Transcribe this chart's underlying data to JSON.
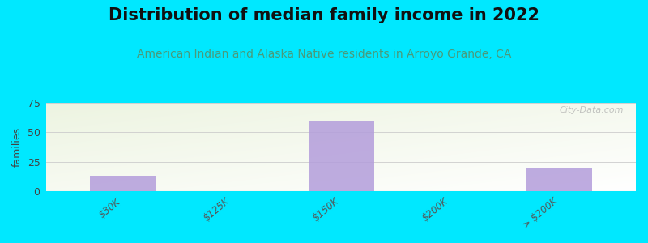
{
  "title": "Distribution of median family income in 2022",
  "subtitle": "American Indian and Alaska Native residents in Arroyo Grande, CA",
  "categories": [
    "$30K",
    "$125K",
    "$150K",
    "$200K",
    "> $200K"
  ],
  "values": [
    13,
    0,
    60,
    0,
    19
  ],
  "bar_color": "#b39ddb",
  "bar_alpha": 0.85,
  "ylim": [
    0,
    75
  ],
  "yticks": [
    0,
    25,
    50,
    75
  ],
  "ylabel": "families",
  "background_color": "#00e8ff",
  "grad_color_green": [
    0.929,
    0.957,
    0.882
  ],
  "grad_color_white": [
    1.0,
    1.0,
    1.0
  ],
  "title_fontsize": 15,
  "subtitle_fontsize": 10,
  "subtitle_color": "#4a9a7a",
  "watermark": "City-Data.com",
  "bar_width": 0.6
}
